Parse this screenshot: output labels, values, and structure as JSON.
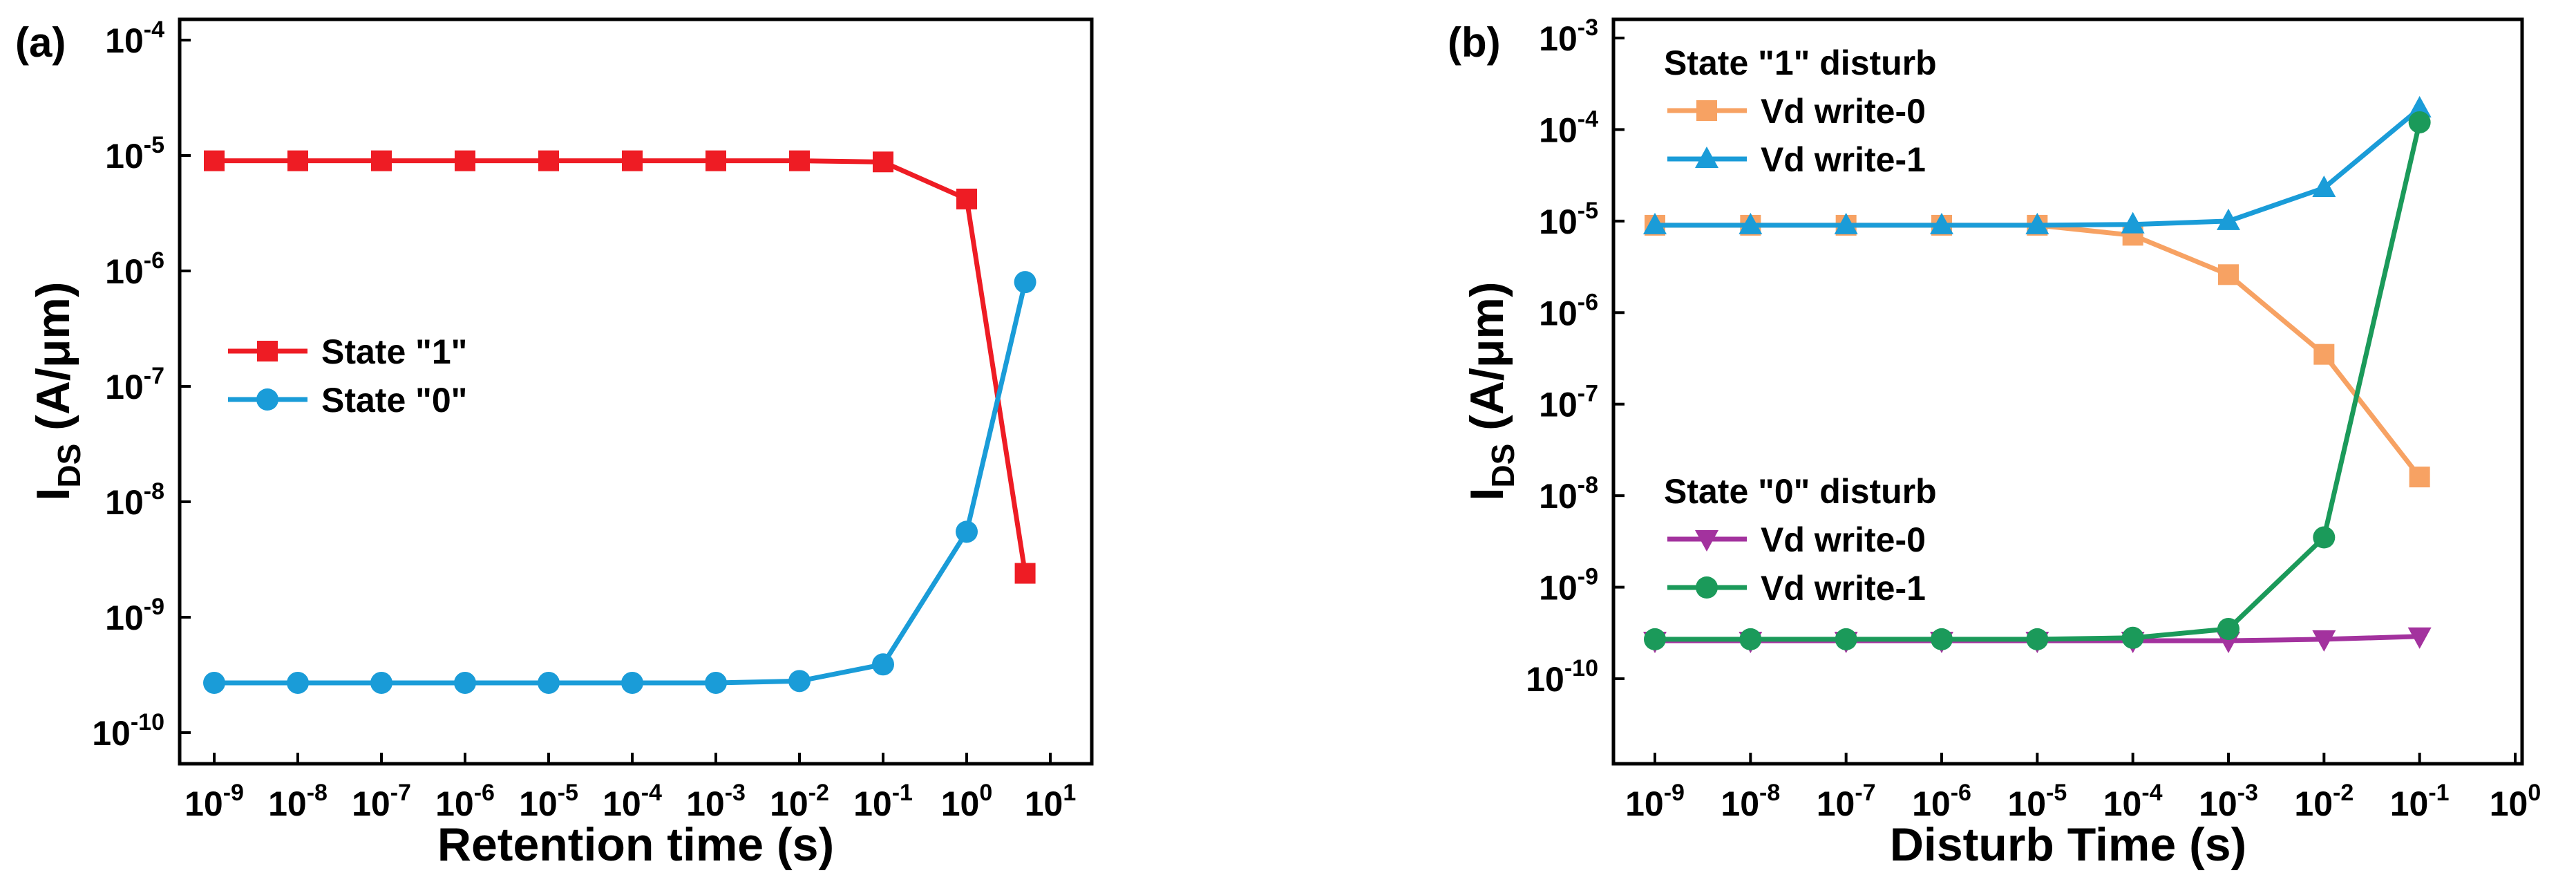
{
  "panels": {
    "a": {
      "label": "(a)"
    },
    "b": {
      "label": "(b)"
    }
  },
  "chart_data": [
    {
      "id": "a",
      "type": "line",
      "xscale": "log10",
      "yscale": "log10",
      "x_exponents": [
        -9,
        1
      ],
      "y_exponents": [
        -10,
        -4
      ],
      "xlabel": "Retention time (s)",
      "ylabel": {
        "base": "I",
        "sub": "DS",
        "unit": " (A/μm)"
      },
      "x_ticks": [
        {
          "base": "10",
          "exp": "-9"
        },
        {
          "base": "10",
          "exp": "-8"
        },
        {
          "base": "10",
          "exp": "-7"
        },
        {
          "base": "10",
          "exp": "-6"
        },
        {
          "base": "10",
          "exp": "-5"
        },
        {
          "base": "10",
          "exp": "-4"
        },
        {
          "base": "10",
          "exp": "-3"
        },
        {
          "base": "10",
          "exp": "-2"
        },
        {
          "base": "10",
          "exp": "-1"
        },
        {
          "base": "10",
          "exp": "0"
        },
        {
          "base": "10",
          "exp": "1"
        }
      ],
      "y_ticks": [
        {
          "base": "10",
          "exp": "-10"
        },
        {
          "base": "10",
          "exp": "-9"
        },
        {
          "base": "10",
          "exp": "-8"
        },
        {
          "base": "10",
          "exp": "-7"
        },
        {
          "base": "10",
          "exp": "-6"
        },
        {
          "base": "10",
          "exp": "-5"
        },
        {
          "base": "10",
          "exp": "-4"
        }
      ],
      "legend": {
        "position": "center-left",
        "title": ""
      },
      "series": [
        {
          "name": "State \"1\"",
          "color": "#ee1c24",
          "marker": "square",
          "x": [
            1e-09,
            1e-08,
            1e-07,
            1e-06,
            1e-05,
            0.0001,
            0.001,
            0.01,
            0.1,
            1,
            5
          ],
          "y": [
            9e-06,
            9e-06,
            9e-06,
            9e-06,
            9e-06,
            9e-06,
            9e-06,
            9e-06,
            8.8e-06,
            4.2e-06,
            2.4e-09
          ]
        },
        {
          "name": "State \"0\"",
          "color": "#1a9cd8",
          "marker": "circle",
          "x": [
            1e-09,
            1e-08,
            1e-07,
            1e-06,
            1e-05,
            0.0001,
            0.001,
            0.01,
            0.1,
            1,
            5
          ],
          "y": [
            2.7e-10,
            2.7e-10,
            2.7e-10,
            2.7e-10,
            2.7e-10,
            2.7e-10,
            2.7e-10,
            2.8e-10,
            3.9e-10,
            5.5e-09,
            8e-07
          ]
        }
      ]
    },
    {
      "id": "b",
      "type": "line",
      "xscale": "log10",
      "yscale": "log10",
      "x_exponents": [
        -9,
        0
      ],
      "y_exponents": [
        -10,
        -3
      ],
      "xlabel": "Disturb Time (s)",
      "ylabel": {
        "base": "I",
        "sub": "DS",
        "unit": " (A/μm)"
      },
      "x_ticks": [
        {
          "base": "10",
          "exp": "-9"
        },
        {
          "base": "10",
          "exp": "-8"
        },
        {
          "base": "10",
          "exp": "-7"
        },
        {
          "base": "10",
          "exp": "-6"
        },
        {
          "base": "10",
          "exp": "-5"
        },
        {
          "base": "10",
          "exp": "-4"
        },
        {
          "base": "10",
          "exp": "-3"
        },
        {
          "base": "10",
          "exp": "-2"
        },
        {
          "base": "10",
          "exp": "-1"
        },
        {
          "base": "10",
          "exp": "0"
        }
      ],
      "y_ticks": [
        {
          "base": "10",
          "exp": "-10"
        },
        {
          "base": "10",
          "exp": "-9"
        },
        {
          "base": "10",
          "exp": "-8"
        },
        {
          "base": "10",
          "exp": "-7"
        },
        {
          "base": "10",
          "exp": "-6"
        },
        {
          "base": "10",
          "exp": "-5"
        },
        {
          "base": "10",
          "exp": "-4"
        },
        {
          "base": "10",
          "exp": "-3"
        }
      ],
      "legends": [
        {
          "position": "top-left",
          "title": "State \"1\" disturb",
          "series": [
            0,
            1
          ]
        },
        {
          "position": "bottom-left",
          "title": "State \"0\" disturb",
          "series": [
            2,
            3
          ]
        }
      ],
      "series": [
        {
          "name": "Vd write-0",
          "color": "#f7a263",
          "marker": "square",
          "x": [
            1e-09,
            1e-08,
            1e-07,
            1e-06,
            1e-05,
            0.0001,
            0.001,
            0.01,
            0.1
          ],
          "y": [
            9e-06,
            9e-06,
            9e-06,
            9e-06,
            9e-06,
            7e-06,
            2.6e-06,
            3.5e-07,
            1.6e-08
          ]
        },
        {
          "name": "Vd write-1",
          "color": "#1a9cd8",
          "marker": "triangle-up",
          "x": [
            1e-09,
            1e-08,
            1e-07,
            1e-06,
            1e-05,
            0.0001,
            0.001,
            0.01,
            0.1
          ],
          "y": [
            9e-06,
            9e-06,
            9e-06,
            9e-06,
            9e-06,
            9.2e-06,
            1e-05,
            2.3e-05,
            0.00017
          ]
        },
        {
          "name": "Vd write-0",
          "color": "#a3329e",
          "marker": "triangle-down",
          "x": [
            1e-09,
            1e-08,
            1e-07,
            1e-06,
            1e-05,
            0.0001,
            0.001,
            0.01,
            0.1
          ],
          "y": [
            2.6e-10,
            2.6e-10,
            2.6e-10,
            2.6e-10,
            2.6e-10,
            2.6e-10,
            2.6e-10,
            2.7e-10,
            2.9e-10
          ]
        },
        {
          "name": "Vd write-1",
          "color": "#1b9a5a",
          "marker": "circle",
          "x": [
            1e-09,
            1e-08,
            1e-07,
            1e-06,
            1e-05,
            0.0001,
            0.001,
            0.01,
            0.1
          ],
          "y": [
            2.7e-10,
            2.7e-10,
            2.7e-10,
            2.7e-10,
            2.7e-10,
            2.8e-10,
            3.5e-10,
            3.5e-09,
            0.00012
          ]
        }
      ]
    }
  ]
}
